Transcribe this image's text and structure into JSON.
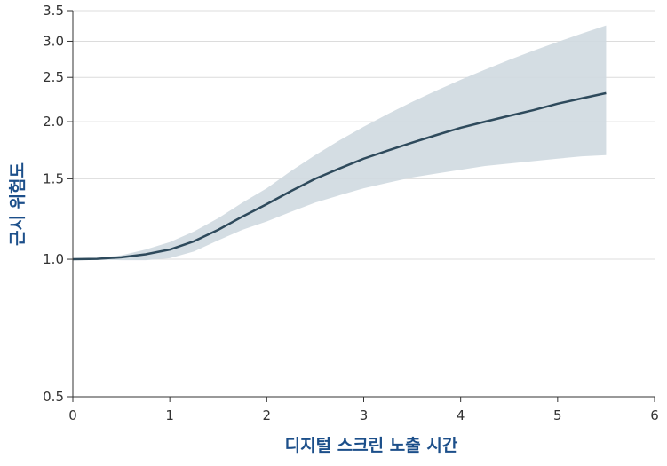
{
  "chart_data": {
    "type": "line",
    "title": "",
    "xlabel": "디지털 스크린 노출 시간",
    "ylabel": "근시 위험도",
    "xlim": [
      0,
      6
    ],
    "ylim": [
      0.5,
      3.5
    ],
    "y_scale": "log",
    "grid": {
      "horizontal": true,
      "vertical": false
    },
    "legend": "none",
    "x_ticks": [
      "0",
      "1",
      "2",
      "3",
      "4",
      "5",
      "6"
    ],
    "y_ticks": [
      "0.5",
      "1.0",
      "1.5",
      "2.0",
      "2.5",
      "3.0",
      "3.5"
    ],
    "series": [
      {
        "x": [
          0,
          0.25,
          0.5,
          0.75,
          1,
          1.25,
          1.5,
          1.75,
          2,
          2.25,
          2.5,
          2.75,
          3,
          3.25,
          3.5,
          3.75,
          4,
          4.25,
          4.5,
          4.75,
          5,
          5.25,
          5.5
        ],
        "y": [
          1.0,
          1.002,
          1.01,
          1.025,
          1.05,
          1.095,
          1.16,
          1.24,
          1.32,
          1.41,
          1.5,
          1.58,
          1.66,
          1.73,
          1.8,
          1.87,
          1.94,
          2.0,
          2.06,
          2.12,
          2.19,
          2.25,
          2.31
        ],
        "lower": [
          1.0,
          0.998,
          0.995,
          0.995,
          1.005,
          1.04,
          1.1,
          1.16,
          1.21,
          1.27,
          1.33,
          1.38,
          1.43,
          1.47,
          1.51,
          1.54,
          1.57,
          1.6,
          1.62,
          1.64,
          1.66,
          1.68,
          1.69
        ],
        "upper": [
          1.0,
          1.005,
          1.02,
          1.05,
          1.09,
          1.15,
          1.23,
          1.33,
          1.43,
          1.56,
          1.69,
          1.82,
          1.95,
          2.08,
          2.21,
          2.34,
          2.47,
          2.6,
          2.73,
          2.86,
          2.99,
          3.12,
          3.25
        ]
      }
    ],
    "colors": {
      "line": "#2e4a5c",
      "band": "#cfd9e0",
      "grid": "#dcdcdc",
      "axis": "#333333",
      "axis_title": "#1c4f8a"
    }
  }
}
